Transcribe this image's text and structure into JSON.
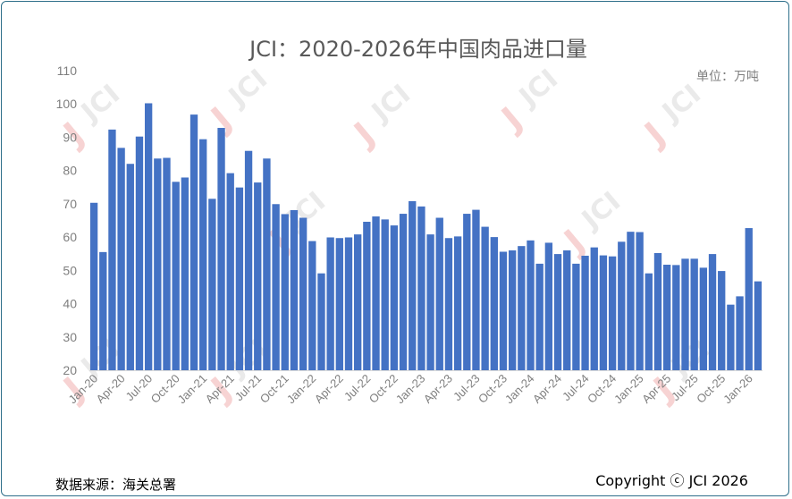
{
  "chart_data": {
    "type": "bar",
    "title": "JCI：2020-2026年中国肉品进口量",
    "unit": "单位：万吨",
    "xlabel": "",
    "ylabel": "",
    "ylim": [
      20,
      110
    ],
    "yticks": [
      20,
      30,
      40,
      50,
      60,
      70,
      80,
      90,
      100,
      110
    ],
    "grid": false,
    "bar_color": "#4472c4",
    "categories": [
      "Jan-20",
      "Feb-20",
      "Mar-20",
      "Apr-20",
      "May-20",
      "Jun-20",
      "Jul-20",
      "Aug-20",
      "Sep-20",
      "Oct-20",
      "Nov-20",
      "Dec-20",
      "Jan-21",
      "Feb-21",
      "Mar-21",
      "Apr-21",
      "May-21",
      "Jun-21",
      "Jul-21",
      "Aug-21",
      "Sep-21",
      "Oct-21",
      "Nov-21",
      "Dec-21",
      "Jan-22",
      "Feb-22",
      "Mar-22",
      "Apr-22",
      "May-22",
      "Jun-22",
      "Jul-22",
      "Aug-22",
      "Sep-22",
      "Oct-22",
      "Nov-22",
      "Dec-22",
      "Jan-23",
      "Feb-23",
      "Mar-23",
      "Apr-23",
      "May-23",
      "Jun-23",
      "Jul-23",
      "Aug-23",
      "Sep-23",
      "Oct-23",
      "Nov-23",
      "Dec-23",
      "Jan-24",
      "Feb-24",
      "Mar-24",
      "Apr-24",
      "May-24",
      "Jun-24",
      "Jul-24",
      "Aug-24",
      "Sep-24",
      "Oct-24",
      "Nov-24",
      "Dec-24",
      "Jan-25",
      "Feb-25",
      "Mar-25",
      "Apr-25",
      "May-25",
      "Jun-25",
      "Jul-25",
      "Aug-25",
      "Sep-25",
      "Oct-25",
      "Nov-25",
      "Dec-25",
      "Jan-26",
      "Feb-26"
    ],
    "values": [
      70.3,
      55.5,
      92.3,
      86.8,
      82.0,
      90.2,
      100.2,
      83.6,
      83.8,
      76.6,
      77.9,
      96.8,
      89.4,
      71.5,
      92.8,
      79.2,
      74.9,
      85.9,
      76.4,
      83.6,
      69.9,
      66.9,
      68.1,
      65.8,
      58.8,
      49.1,
      59.9,
      59.7,
      59.9,
      60.8,
      64.6,
      66.2,
      65.3,
      63.5,
      67.0,
      70.8,
      69.2,
      60.8,
      65.8,
      59.7,
      60.2,
      67.0,
      68.2,
      63.1,
      60.0,
      55.6,
      56.0,
      57.3,
      59.0,
      52.0,
      58.3,
      54.9,
      56.0,
      52.0,
      54.4,
      56.9,
      54.5,
      54.2,
      58.6,
      61.6,
      61.5,
      49.1,
      55.2,
      51.7,
      51.6,
      53.5,
      53.5,
      50.8,
      54.9,
      49.8,
      39.7,
      42.2,
      62.7,
      46.7
    ],
    "tick_every": 3,
    "source": "数据来源：海关总署",
    "copyright": "Copyright ⓒ JCI 2026",
    "watermark": "JCI"
  }
}
